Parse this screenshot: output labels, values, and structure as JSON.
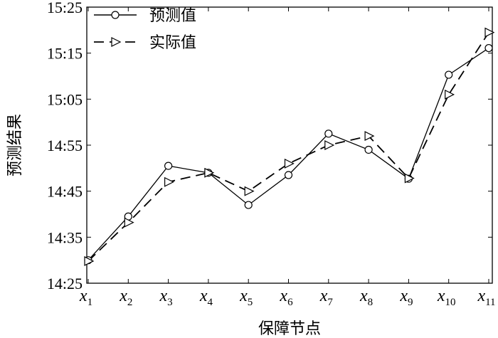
{
  "chart_data": {
    "type": "line",
    "title": "",
    "xlabel": "保障节点",
    "ylabel": "预测结果",
    "categories": [
      {
        "var": "x",
        "sub": "1"
      },
      {
        "var": "x",
        "sub": "2"
      },
      {
        "var": "x",
        "sub": "3"
      },
      {
        "var": "x",
        "sub": "4"
      },
      {
        "var": "x",
        "sub": "5"
      },
      {
        "var": "x",
        "sub": "6"
      },
      {
        "var": "x",
        "sub": "7"
      },
      {
        "var": "x",
        "sub": "8"
      },
      {
        "var": "x",
        "sub": "9"
      },
      {
        "var": "x",
        "sub": "10"
      },
      {
        "var": "x",
        "sub": "11"
      }
    ],
    "y_ticks": [
      "14:25",
      "14:35",
      "14:45",
      "14:55",
      "15:05",
      "15:15",
      "15:25"
    ],
    "ylim": [
      "14:25",
      "15:25"
    ],
    "series": [
      {
        "name": "预测值",
        "marker": "circle",
        "line": "solid",
        "values": [
          "14:30",
          "14:39.5",
          "14:50.5",
          "14:49",
          "14:42",
          "14:48.5",
          "14:57.5",
          "14:54",
          "14:47.7",
          "15:10.3",
          "15:16.1"
        ]
      },
      {
        "name": "实际值",
        "marker": "triangle-right",
        "line": "dashed",
        "values": [
          "14:29.8",
          "14:38.2",
          "14:47",
          "14:49",
          "14:45",
          "14:51",
          "14:55",
          "14:57",
          "14:47.8",
          "15:06",
          "15:19.5"
        ]
      }
    ],
    "legend_position": "top-left",
    "grid": false
  }
}
